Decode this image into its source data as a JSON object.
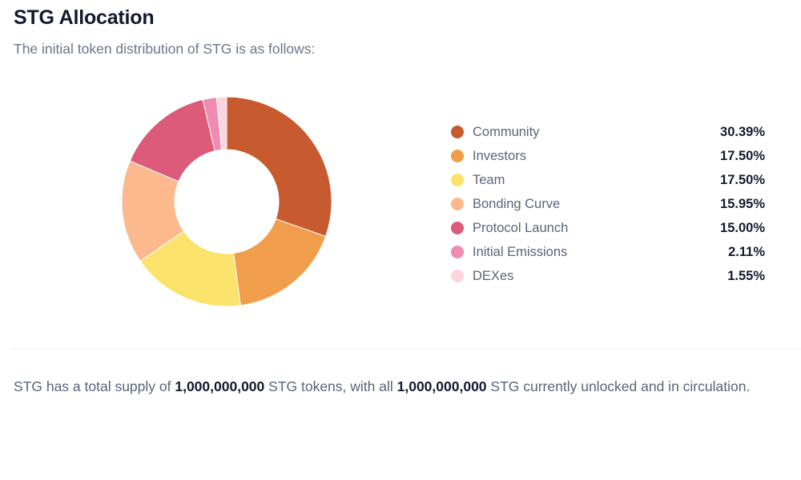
{
  "header": {
    "title": "STG Allocation",
    "subtitle": "The initial token distribution of STG is as follows:"
  },
  "chart_data": {
    "type": "pie",
    "variant": "donut",
    "title": "STG Allocation",
    "categories": [
      "Community",
      "Investors",
      "Team",
      "Bonding Curve",
      "Protocol Launch",
      "Initial Emissions",
      "DEXes"
    ],
    "values": [
      30.39,
      17.5,
      17.5,
      15.95,
      15.0,
      2.11,
      1.55
    ],
    "value_labels": [
      "30.39%",
      "17.50%",
      "17.50%",
      "15.95%",
      "15.00%",
      "2.11%",
      "1.55%"
    ],
    "colors": [
      "#C75A2E",
      "#F09E4B",
      "#FAE26B",
      "#FCB98E",
      "#DC5A7A",
      "#F08BB2",
      "#FDD5DF"
    ],
    "unit": "%",
    "legend_position": "right",
    "start_angle": "12 o'clock, clockwise"
  },
  "legend": {
    "items": [
      {
        "label": "Community",
        "value": "30.39%",
        "color": "#C75A2E"
      },
      {
        "label": "Investors",
        "value": "17.50%",
        "color": "#F09E4B"
      },
      {
        "label": "Team",
        "value": "17.50%",
        "color": "#FAE26B"
      },
      {
        "label": "Bonding Curve",
        "value": "15.95%",
        "color": "#FCB98E"
      },
      {
        "label": "Protocol Launch",
        "value": "15.00%",
        "color": "#DC5A7A"
      },
      {
        "label": "Initial Emissions",
        "value": "2.11%",
        "color": "#F08BB2"
      },
      {
        "label": "DEXes",
        "value": "1.55%",
        "color": "#FDD5DF"
      }
    ]
  },
  "supply": {
    "part1": "STG has a total supply of ",
    "total_supply": "1,000,000,000",
    "part2": " STG tokens, with all ",
    "unlocked_supply": "1,000,000,000",
    "part3": " STG currently unlocked and in circulation."
  }
}
